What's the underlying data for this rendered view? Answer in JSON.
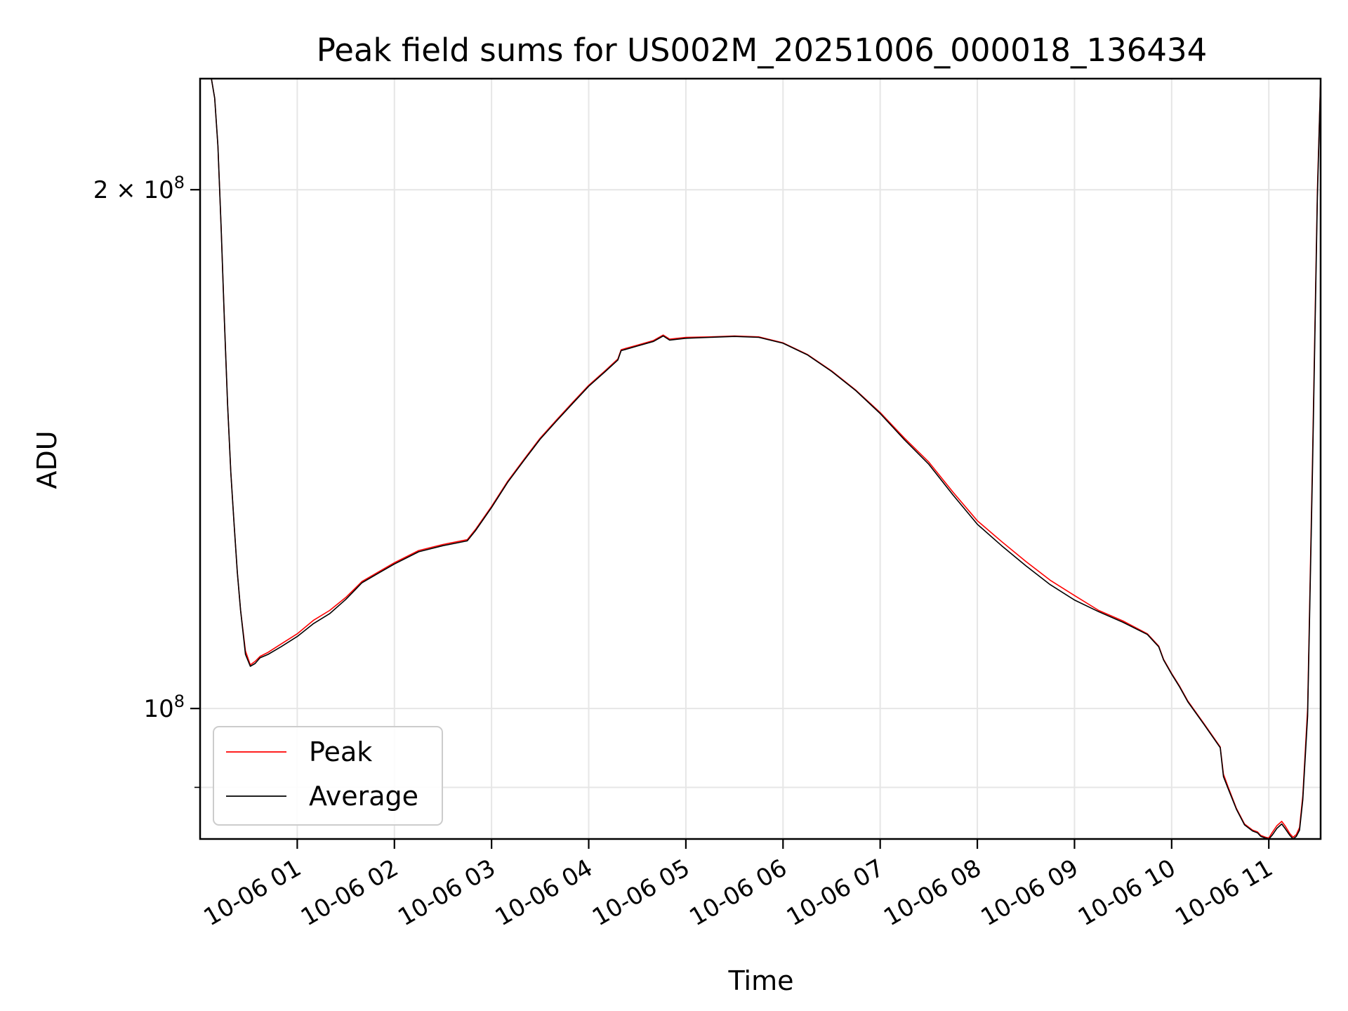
{
  "chart_data": {
    "type": "line",
    "title": "Peak field sums for US002M_20251006_000018_136434",
    "xlabel": "Time",
    "ylabel": "ADU",
    "y_scale": "log",
    "ylim": [
      84000000,
      232000000
    ],
    "xlim": [
      "2025-10-06 00:00",
      "2025-10-06 11:32"
    ],
    "x_ticks": [
      "10-06 01",
      "10-06 02",
      "10-06 03",
      "10-06 04",
      "10-06 05",
      "10-06 06",
      "10-06 07",
      "10-06 08",
      "10-06 09",
      "10-06 10",
      "10-06 11"
    ],
    "y_ticks": [
      {
        "value": 200000000,
        "base": "2 × 10",
        "exp": "8"
      },
      {
        "value": 100000000,
        "base": "10",
        "exp": "8"
      }
    ],
    "grid": true,
    "legend_position": "lower left",
    "series": [
      {
        "name": "Peak",
        "color": "#ff0000",
        "x": [
          "2025-10-06 00:07",
          "2025-10-06 00:09",
          "2025-10-06 00:11",
          "2025-10-06 00:13",
          "2025-10-06 00:15",
          "2025-10-06 00:17",
          "2025-10-06 00:19",
          "2025-10-06 00:21",
          "2025-10-06 00:23",
          "2025-10-06 00:25",
          "2025-10-06 00:28",
          "2025-10-06 00:31",
          "2025-10-06 00:34",
          "2025-10-06 00:37",
          "2025-10-06 00:42",
          "2025-10-06 00:50",
          "2025-10-06 01:00",
          "2025-10-06 01:10",
          "2025-10-06 01:20",
          "2025-10-06 01:30",
          "2025-10-06 01:40",
          "2025-10-06 01:50",
          "2025-10-06 02:00",
          "2025-10-06 02:15",
          "2025-10-06 02:30",
          "2025-10-06 02:45",
          "2025-10-06 02:50",
          "2025-10-06 03:00",
          "2025-10-06 03:10",
          "2025-10-06 03:20",
          "2025-10-06 03:30",
          "2025-10-06 03:40",
          "2025-10-06 03:50",
          "2025-10-06 04:00",
          "2025-10-06 04:10",
          "2025-10-06 04:18",
          "2025-10-06 04:20",
          "2025-10-06 04:30",
          "2025-10-06 04:40",
          "2025-10-06 04:46",
          "2025-10-06 04:50",
          "2025-10-06 05:00",
          "2025-10-06 05:15",
          "2025-10-06 05:30",
          "2025-10-06 05:45",
          "2025-10-06 06:00",
          "2025-10-06 06:15",
          "2025-10-06 06:30",
          "2025-10-06 06:45",
          "2025-10-06 07:00",
          "2025-10-06 07:15",
          "2025-10-06 07:30",
          "2025-10-06 07:45",
          "2025-10-06 08:00",
          "2025-10-06 08:15",
          "2025-10-06 08:30",
          "2025-10-06 08:45",
          "2025-10-06 09:00",
          "2025-10-06 09:15",
          "2025-10-06 09:30",
          "2025-10-06 09:45",
          "2025-10-06 09:52",
          "2025-10-06 09:55",
          "2025-10-06 10:00",
          "2025-10-06 10:05",
          "2025-10-06 10:10",
          "2025-10-06 10:20",
          "2025-10-06 10:30",
          "2025-10-06 10:32",
          "2025-10-06 10:35",
          "2025-10-06 10:40",
          "2025-10-06 10:45",
          "2025-10-06 10:50",
          "2025-10-06 10:53",
          "2025-10-06 10:55",
          "2025-10-06 10:58",
          "2025-10-06 11:00",
          "2025-10-06 11:02",
          "2025-10-06 11:05",
          "2025-10-06 11:08",
          "2025-10-06 11:10",
          "2025-10-06 11:13",
          "2025-10-06 11:15",
          "2025-10-06 11:17",
          "2025-10-06 11:19",
          "2025-10-06 11:21",
          "2025-10-06 11:24",
          "2025-10-06 11:27",
          "2025-10-06 11:30",
          "2025-10-06 11:32"
        ],
        "y": [
          232000000,
          226000000,
          212000000,
          190000000,
          168000000,
          150000000,
          137000000,
          128000000,
          120000000,
          114000000,
          108000000,
          106000000,
          106500000,
          107200000,
          107800000,
          109000000,
          110500000,
          112500000,
          114000000,
          116000000,
          118500000,
          120000000,
          121500000,
          123500000,
          124500000,
          125300000,
          127000000,
          131000000,
          135500000,
          139500000,
          143500000,
          147000000,
          150500000,
          154000000,
          157000000,
          159500000,
          161500000,
          162500000,
          163500000,
          164700000,
          163800000,
          164200000,
          164300000,
          164500000,
          164300000,
          163000000,
          160500000,
          157000000,
          153000000,
          148500000,
          143500000,
          139000000,
          133500000,
          128500000,
          125000000,
          121700000,
          118700000,
          116300000,
          114000000,
          112400000,
          110500000,
          108700000,
          106800000,
          104800000,
          103000000,
          101000000,
          98000000,
          95000000,
          91600000,
          90000000,
          87500000,
          85700000,
          85000000,
          84800000,
          84400000,
          84200000,
          84100000,
          84700000,
          85500000,
          86000000,
          85500000,
          84600000,
          84200000,
          84500000,
          85300000,
          89000000,
          100000000,
          140000000,
          200000000,
          232000000
        ]
      },
      {
        "name": "Average",
        "color": "#000000",
        "x": [
          "2025-10-06 00:07",
          "2025-10-06 00:09",
          "2025-10-06 00:11",
          "2025-10-06 00:13",
          "2025-10-06 00:15",
          "2025-10-06 00:17",
          "2025-10-06 00:19",
          "2025-10-06 00:21",
          "2025-10-06 00:23",
          "2025-10-06 00:25",
          "2025-10-06 00:28",
          "2025-10-06 00:31",
          "2025-10-06 00:34",
          "2025-10-06 00:37",
          "2025-10-06 00:42",
          "2025-10-06 00:50",
          "2025-10-06 01:00",
          "2025-10-06 01:10",
          "2025-10-06 01:20",
          "2025-10-06 01:30",
          "2025-10-06 01:40",
          "2025-10-06 01:50",
          "2025-10-06 02:00",
          "2025-10-06 02:15",
          "2025-10-06 02:30",
          "2025-10-06 02:45",
          "2025-10-06 02:50",
          "2025-10-06 03:00",
          "2025-10-06 03:10",
          "2025-10-06 03:20",
          "2025-10-06 03:30",
          "2025-10-06 03:40",
          "2025-10-06 03:50",
          "2025-10-06 04:00",
          "2025-10-06 04:10",
          "2025-10-06 04:18",
          "2025-10-06 04:20",
          "2025-10-06 04:30",
          "2025-10-06 04:40",
          "2025-10-06 04:46",
          "2025-10-06 04:50",
          "2025-10-06 05:00",
          "2025-10-06 05:15",
          "2025-10-06 05:30",
          "2025-10-06 05:45",
          "2025-10-06 06:00",
          "2025-10-06 06:15",
          "2025-10-06 06:30",
          "2025-10-06 06:45",
          "2025-10-06 07:00",
          "2025-10-06 07:15",
          "2025-10-06 07:30",
          "2025-10-06 07:45",
          "2025-10-06 08:00",
          "2025-10-06 08:15",
          "2025-10-06 08:30",
          "2025-10-06 08:45",
          "2025-10-06 09:00",
          "2025-10-06 09:15",
          "2025-10-06 09:30",
          "2025-10-06 09:45",
          "2025-10-06 09:52",
          "2025-10-06 09:55",
          "2025-10-06 10:00",
          "2025-10-06 10:05",
          "2025-10-06 10:10",
          "2025-10-06 10:20",
          "2025-10-06 10:30",
          "2025-10-06 10:32",
          "2025-10-06 10:35",
          "2025-10-06 10:40",
          "2025-10-06 10:45",
          "2025-10-06 10:50",
          "2025-10-06 10:53",
          "2025-10-06 10:55",
          "2025-10-06 10:58",
          "2025-10-06 11:00",
          "2025-10-06 11:02",
          "2025-10-06 11:05",
          "2025-10-06 11:08",
          "2025-10-06 11:10",
          "2025-10-06 11:13",
          "2025-10-06 11:15",
          "2025-10-06 11:17",
          "2025-10-06 11:19",
          "2025-10-06 11:21",
          "2025-10-06 11:24",
          "2025-10-06 11:27",
          "2025-10-06 11:30",
          "2025-10-06 11:32"
        ],
        "y": [
          232000000,
          226000000,
          212000000,
          190000000,
          168000000,
          150000000,
          137000000,
          128000000,
          120000000,
          114000000,
          107500000,
          105800000,
          106200000,
          107000000,
          107500000,
          108600000,
          110100000,
          112000000,
          113500000,
          115700000,
          118300000,
          119800000,
          121300000,
          123300000,
          124300000,
          125100000,
          126800000,
          130800000,
          135300000,
          139300000,
          143300000,
          146800000,
          150300000,
          153800000,
          156800000,
          159300000,
          161300000,
          162300000,
          163300000,
          164500000,
          163600000,
          164000000,
          164200000,
          164400000,
          164200000,
          162900000,
          160400000,
          156900000,
          152900000,
          148300000,
          143200000,
          138600000,
          133000000,
          127900000,
          124300000,
          121000000,
          118000000,
          115600000,
          113800000,
          112200000,
          110400000,
          108600000,
          106700000,
          104700000,
          102900000,
          100900000,
          97900000,
          94900000,
          91300000,
          89800000,
          87400000,
          85600000,
          84900000,
          84700000,
          84300000,
          84100000,
          84000000,
          84400000,
          85200000,
          85700000,
          85200000,
          84400000,
          84000000,
          84300000,
          85000000,
          88500000,
          99000000,
          138000000,
          198000000,
          232000000
        ]
      }
    ]
  }
}
